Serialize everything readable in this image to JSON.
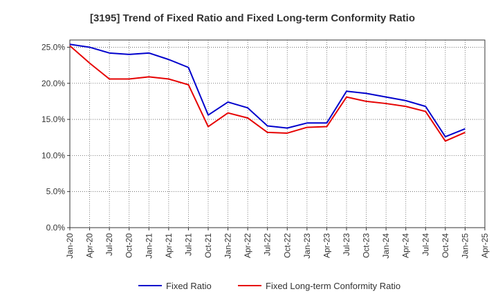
{
  "chart_data": {
    "type": "line",
    "title": "[3195]  Trend of Fixed Ratio and Fixed Long-term Conformity Ratio",
    "xlabel": "",
    "ylabel": "",
    "ylim": [
      0,
      26
    ],
    "yticks": [
      0,
      5,
      10,
      15,
      20,
      25
    ],
    "ytick_labels": [
      "0.0%",
      "5.0%",
      "10.0%",
      "15.0%",
      "20.0%",
      "25.0%"
    ],
    "x": [
      "Jan-20",
      "Apr-20",
      "Jul-20",
      "Oct-20",
      "Jan-21",
      "Apr-21",
      "Jul-21",
      "Oct-21",
      "Jan-22",
      "Apr-22",
      "Jul-22",
      "Oct-22",
      "Jan-23",
      "Apr-23",
      "Jul-23",
      "Oct-23",
      "Jan-24",
      "Apr-24",
      "Jul-24",
      "Oct-24",
      "Jan-25",
      "Apr-25"
    ],
    "grid": true,
    "legend_position": "bottom",
    "series": [
      {
        "name": "Fixed Ratio",
        "color": "#0000cc",
        "values": [
          25.4,
          25.0,
          24.2,
          24.0,
          24.2,
          23.3,
          22.2,
          15.6,
          17.4,
          16.6,
          14.1,
          13.8,
          14.5,
          14.5,
          18.9,
          18.6,
          18.1,
          17.6,
          16.8,
          12.6,
          13.7,
          null
        ]
      },
      {
        "name": "Fixed Long-term Conformity Ratio",
        "color": "#e60000",
        "values": [
          25.2,
          22.8,
          20.6,
          20.6,
          20.9,
          20.6,
          19.8,
          14.0,
          15.9,
          15.2,
          13.2,
          13.1,
          13.9,
          14.0,
          18.1,
          17.5,
          17.2,
          16.8,
          16.1,
          12.0,
          13.2,
          null
        ]
      }
    ]
  }
}
